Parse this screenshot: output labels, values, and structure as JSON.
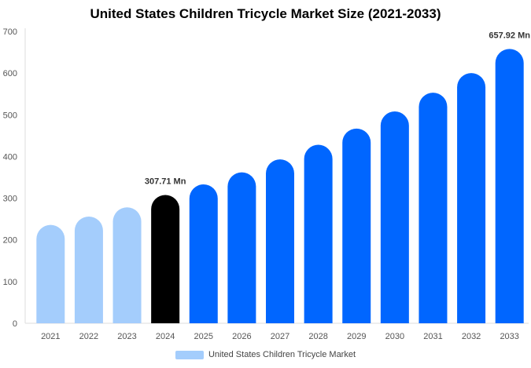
{
  "chart_data": {
    "type": "bar",
    "title": "United States Children Tricycle Market Size (2021-2033)",
    "categories": [
      "2021",
      "2022",
      "2023",
      "2024",
      "2025",
      "2026",
      "2027",
      "2028",
      "2029",
      "2030",
      "2031",
      "2032",
      "2033"
    ],
    "series": [
      {
        "name": "United States Children Tricycle Market",
        "values": [
          236,
          256,
          278,
          307.71,
          333,
          362,
          393,
          428,
          467,
          508,
          553,
          600,
          657.92
        ]
      }
    ],
    "data_labels": [
      {
        "category": "2024",
        "text": "307.71 Mn"
      },
      {
        "category": "2033",
        "text": "657.92 Mn"
      }
    ],
    "bar_colors": [
      "#a4cdfc",
      "#a4cdfc",
      "#a4cdfc",
      "#000000",
      "#0066ff",
      "#0066ff",
      "#0066ff",
      "#0066ff",
      "#0066ff",
      "#0066ff",
      "#0066ff",
      "#0066ff",
      "#0066ff"
    ],
    "ylim": [
      0,
      700
    ],
    "yticks": [
      0,
      100,
      200,
      300,
      400,
      500,
      600,
      700
    ],
    "grid": false,
    "legend_position": "bottom-center",
    "legend_color": "#a4cdfc"
  }
}
